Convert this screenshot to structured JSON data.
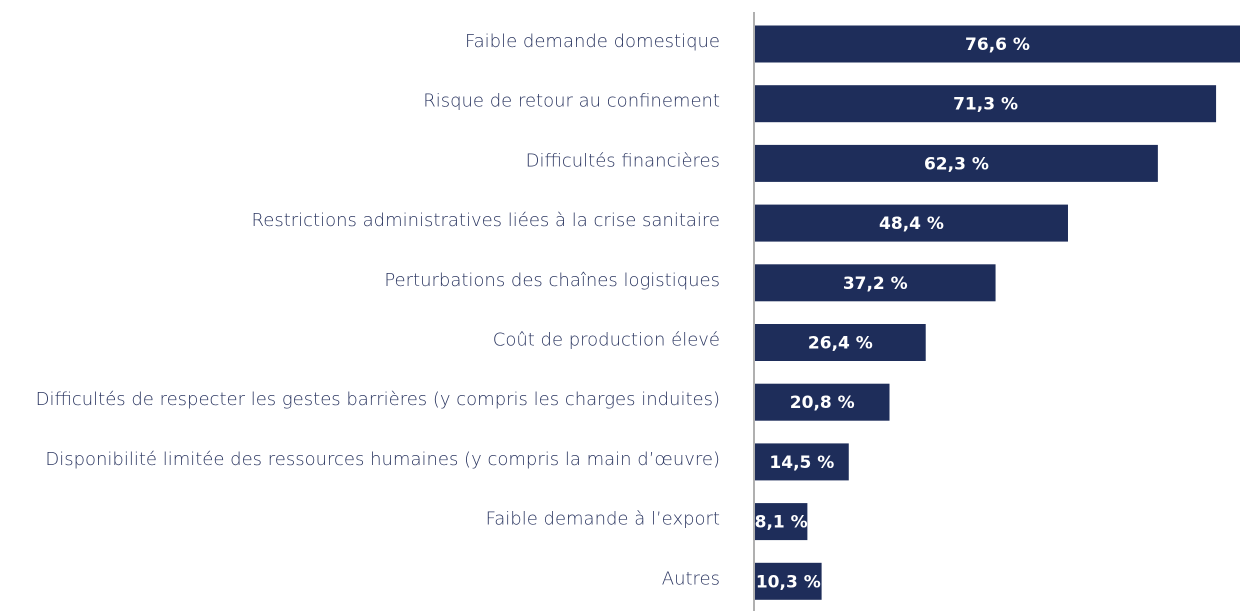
{
  "chart_data": {
    "type": "bar",
    "orientation": "horizontal",
    "categories": [
      "Faible demande domestique",
      "Risque de retour au confinement",
      "Difficultés financières",
      "Restrictions administratives liées à la crise sanitaire",
      "Perturbations des chaînes logistiques",
      "Coût de production élevé",
      "Difficultés de respecter les gestes barrières (y compris les charges induites)",
      "Disponibilité limitée des ressources humaines (y compris la main d’œuvre)",
      "Faible demande à l’export",
      "Autres"
    ],
    "values": [
      76.6,
      71.3,
      62.3,
      48.4,
      37.2,
      26.4,
      20.8,
      14.5,
      8.1,
      10.3
    ],
    "value_labels": [
      "76,6 %",
      "71,3 %",
      "62,3 %",
      "48,4 %",
      "37,2 %",
      "26,4 %",
      "20,8 %",
      "14,5 %",
      "8,1 %",
      "10,3 %"
    ],
    "color": "#1e2d5a",
    "xlim": [
      0,
      75
    ]
  }
}
